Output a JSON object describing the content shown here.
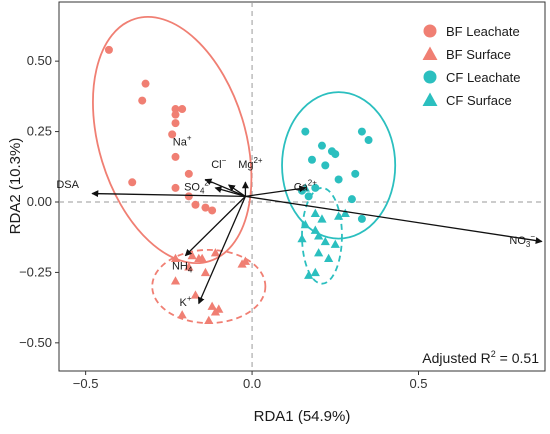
{
  "chart_data": {
    "type": "scatter",
    "xlabel": "RDA1 (54.9%)",
    "ylabel": "RDA2 (10.3%)",
    "xlim": [
      -0.58,
      0.88
    ],
    "ylim": [
      -0.6,
      0.71
    ],
    "xticks": [
      {
        "value": -0.5,
        "label": "−0.5"
      },
      {
        "value": 0.0,
        "label": "0.0"
      },
      {
        "value": 0.5,
        "label": "0.5"
      }
    ],
    "yticks": [
      {
        "value": 0.5,
        "label": "0.50"
      },
      {
        "value": 0.25,
        "label": "0.25"
      },
      {
        "value": 0.0,
        "label": "0.00"
      },
      {
        "value": -0.25,
        "label": "−0.25"
      },
      {
        "value": -0.5,
        "label": "−0.50"
      }
    ],
    "grid": false,
    "reference_lines": {
      "x": 0,
      "y": 0,
      "style": "dashed"
    },
    "legend_position": "top-right",
    "annotation": {
      "text": "Adjusted R",
      "sup": "2",
      "tail": " = 0.51"
    },
    "series": [
      {
        "name": "BF Leachate",
        "marker": "circle",
        "color": "#F07F73",
        "points": [
          [
            -0.43,
            0.54
          ],
          [
            -0.32,
            0.42
          ],
          [
            -0.33,
            0.36
          ],
          [
            -0.23,
            0.33
          ],
          [
            -0.23,
            0.31
          ],
          [
            -0.21,
            0.33
          ],
          [
            -0.23,
            0.28
          ],
          [
            -0.24,
            0.24
          ],
          [
            -0.23,
            0.16
          ],
          [
            -0.36,
            0.07
          ],
          [
            -0.23,
            0.05
          ],
          [
            -0.19,
            0.1
          ],
          [
            -0.19,
            0.02
          ],
          [
            -0.17,
            -0.01
          ],
          [
            -0.14,
            -0.02
          ],
          [
            -0.12,
            -0.03
          ]
        ]
      },
      {
        "name": "BF Surface",
        "marker": "triangle",
        "color": "#F07F73",
        "points": [
          [
            -0.18,
            -0.19
          ],
          [
            -0.15,
            -0.2
          ],
          [
            -0.16,
            -0.2
          ],
          [
            -0.11,
            -0.18
          ],
          [
            -0.02,
            -0.21
          ],
          [
            -0.03,
            -0.22
          ],
          [
            -0.23,
            -0.2
          ],
          [
            -0.19,
            -0.23
          ],
          [
            -0.14,
            -0.25
          ],
          [
            -0.23,
            -0.28
          ],
          [
            -0.17,
            -0.33
          ],
          [
            -0.1,
            -0.38
          ],
          [
            -0.12,
            -0.37
          ],
          [
            -0.11,
            -0.39
          ],
          [
            -0.13,
            -0.42
          ],
          [
            -0.21,
            -0.4
          ]
        ]
      },
      {
        "name": "CF Leachate",
        "marker": "circle",
        "color": "#2BBFBF",
        "points": [
          [
            0.16,
            0.25
          ],
          [
            0.33,
            0.25
          ],
          [
            0.35,
            0.22
          ],
          [
            0.21,
            0.2
          ],
          [
            0.24,
            0.18
          ],
          [
            0.25,
            0.17
          ],
          [
            0.18,
            0.15
          ],
          [
            0.22,
            0.13
          ],
          [
            0.31,
            0.1
          ],
          [
            0.26,
            0.08
          ],
          [
            0.19,
            0.05
          ],
          [
            0.15,
            0.04
          ],
          [
            0.17,
            0.02
          ],
          [
            0.3,
            0.01
          ],
          [
            0.33,
            -0.06
          ]
        ]
      },
      {
        "name": "CF Surface",
        "marker": "triangle",
        "color": "#2BBFBF",
        "points": [
          [
            0.16,
            0.05
          ],
          [
            0.19,
            -0.04
          ],
          [
            0.16,
            -0.08
          ],
          [
            0.21,
            -0.06
          ],
          [
            0.26,
            -0.05
          ],
          [
            0.28,
            -0.04
          ],
          [
            0.19,
            -0.1
          ],
          [
            0.2,
            -0.12
          ],
          [
            0.22,
            -0.14
          ],
          [
            0.15,
            -0.13
          ],
          [
            0.2,
            -0.18
          ],
          [
            0.25,
            -0.15
          ],
          [
            0.23,
            -0.2
          ],
          [
            0.19,
            -0.25
          ],
          [
            0.17,
            -0.26
          ]
        ]
      }
    ],
    "ellipses": [
      {
        "series": "BF Leachate",
        "style": "solid",
        "cx": -0.24,
        "cy": 0.22,
        "rx": 0.22,
        "ry": 0.45,
        "angle": -17
      },
      {
        "series": "CF Leachate",
        "style": "solid",
        "cx": 0.26,
        "cy": 0.13,
        "rx": 0.17,
        "ry": 0.26,
        "angle": 0
      },
      {
        "series": "BF Surface",
        "style": "dashed",
        "cx": -0.13,
        "cy": -0.3,
        "rx": 0.17,
        "ry": 0.13,
        "angle": 0
      },
      {
        "series": "CF Surface",
        "style": "dashed",
        "cx": 0.21,
        "cy": -0.12,
        "rx": 0.06,
        "ry": 0.17,
        "angle": 0
      }
    ],
    "vectors": [
      {
        "base": "DSA",
        "sup": "",
        "sub": "",
        "x": -0.48,
        "y": 0.03,
        "lx": -0.52,
        "ly": 0.05,
        "anchor": "end"
      },
      {
        "base": "NO",
        "sub": "3",
        "sup": "−",
        "x": 0.87,
        "y": -0.14,
        "lx": 0.85,
        "ly": -0.15,
        "anchor": "end"
      },
      {
        "base": "Na",
        "sup": "+",
        "sub": "",
        "x": -0.14,
        "y": 0.08,
        "lx": -0.21,
        "ly": 0.2,
        "anchor": "middle"
      },
      {
        "base": "Cl",
        "sup": "−",
        "sub": "",
        "x": -0.07,
        "y": 0.06,
        "lx": -0.1,
        "ly": 0.12,
        "anchor": "middle"
      },
      {
        "base": "Mg",
        "sup": "2+",
        "sub": "",
        "x": -0.02,
        "y": 0.07,
        "lx": -0.005,
        "ly": 0.12,
        "anchor": "middle"
      },
      {
        "base": "SO",
        "sub": "4",
        "sup": "2−",
        "x": -0.11,
        "y": 0.05,
        "lx": -0.16,
        "ly": 0.04,
        "anchor": "middle"
      },
      {
        "base": "Ca",
        "sup": "2+",
        "sub": "",
        "x": 0.16,
        "y": 0.05,
        "lx": 0.16,
        "ly": 0.04,
        "anchor": "middle"
      },
      {
        "base": "NH",
        "sub": "4",
        "sup": "",
        "x": -0.2,
        "y": -0.19,
        "lx": -0.21,
        "ly": -0.24,
        "anchor": "middle"
      },
      {
        "base": "K",
        "sup": "+",
        "sub": "",
        "x": -0.16,
        "y": -0.36,
        "lx": -0.2,
        "ly": -0.37,
        "anchor": "middle"
      }
    ],
    "vector_origin": [
      -0.02,
      0.02
    ]
  }
}
